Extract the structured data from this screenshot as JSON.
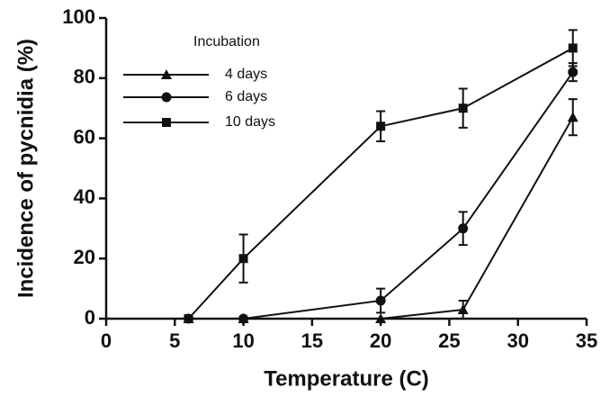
{
  "chart_data": {
    "type": "line",
    "xlabel": "Temperature (C)",
    "ylabel": "Incidence of pycnidia (%)",
    "legend_title": "Incubation",
    "legend": "upper left",
    "x": [
      6,
      10,
      20,
      26,
      34
    ],
    "series": [
      {
        "name": "4 days",
        "color": "#111111",
        "marker": "triangle",
        "values": [
          0,
          0,
          0,
          3,
          67
        ],
        "errors": [
          null,
          null,
          null,
          3,
          6
        ]
      },
      {
        "name": "6 days",
        "color": "#111111",
        "marker": "circle",
        "values": [
          0,
          0,
          6,
          30,
          82
        ],
        "errors": [
          null,
          null,
          4,
          5.5,
          3
        ]
      },
      {
        "name": "10 days",
        "color": "#111111",
        "marker": "square",
        "values": [
          0,
          20,
          64,
          70,
          90
        ],
        "errors": [
          null,
          8,
          5,
          6.5,
          6
        ]
      }
    ],
    "xlim": [
      0,
      35
    ],
    "xticks": [
      0,
      5,
      10,
      15,
      20,
      25,
      30,
      35
    ],
    "ylim": [
      0,
      100
    ],
    "yticks": [
      0,
      20,
      40,
      60,
      80,
      100
    ]
  }
}
